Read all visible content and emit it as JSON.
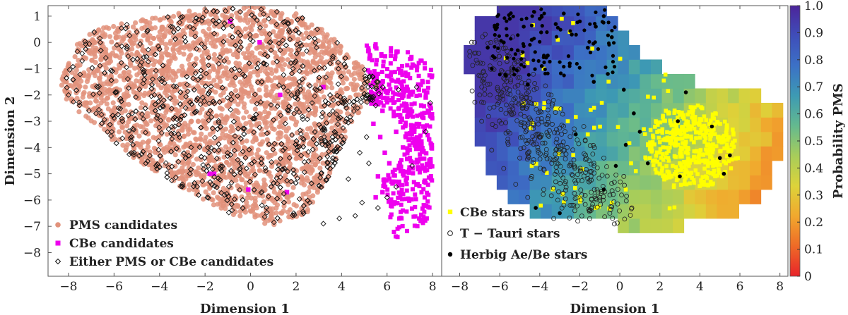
{
  "chart_data": [
    {
      "type": "scatter",
      "panel": "left",
      "xlabel": "Dimension 1",
      "ylabel": "Dimension 2",
      "xlim": [
        -8.9,
        8.4
      ],
      "ylim": [
        -8.9,
        1.4
      ],
      "xticks": [
        "−8",
        "−6",
        "−4",
        "−2",
        "0",
        "2",
        "4",
        "6",
        "8"
      ],
      "yticks": [
        "1",
        "0",
        "−1",
        "−2",
        "−3",
        "−4",
        "−5",
        "−6",
        "−7",
        "−8"
      ],
      "legend_position": "bottom-left",
      "series": [
        {
          "name": "PMS candidates",
          "marker": "filled-circle",
          "color": "#e2927b",
          "region_outline": [
            [
              -8.3,
              -1.3
            ],
            [
              -8.0,
              -0.6
            ],
            [
              -7.5,
              0.1
            ],
            [
              -6.5,
              0.6
            ],
            [
              -4.5,
              0.9
            ],
            [
              -2.0,
              1.3
            ],
            [
              0.0,
              1.4
            ],
            [
              2.0,
              1.1
            ],
            [
              3.5,
              0.3
            ],
            [
              5.0,
              -1.0
            ],
            [
              6.0,
              -1.7
            ],
            [
              4.5,
              -3.0
            ],
            [
              3.5,
              -5.0
            ],
            [
              2.5,
              -6.5
            ],
            [
              1.0,
              -7.0
            ],
            [
              -1.0,
              -6.5
            ],
            [
              -3.5,
              -5.3
            ],
            [
              -5.5,
              -4.2
            ],
            [
              -7.0,
              -3.0
            ],
            [
              -7.8,
              -2.6
            ],
            [
              -8.3,
              -1.9
            ]
          ],
          "points": [
            [
              -8.1,
              -1.5
            ],
            [
              -7.6,
              -0.9
            ],
            [
              -6.8,
              -0.3
            ],
            [
              -5.9,
              0.2
            ],
            [
              -4.8,
              -0.8
            ],
            [
              -3.9,
              0.5
            ],
            [
              -3.1,
              -1.6
            ],
            [
              -2.2,
              0.9
            ],
            [
              -1.5,
              -2.8
            ],
            [
              -0.6,
              0.4
            ],
            [
              0.3,
              -1.1
            ],
            [
              1.2,
              0.6
            ],
            [
              2.1,
              -0.3
            ],
            [
              3.0,
              -1.4
            ],
            [
              4.0,
              -2.2
            ],
            [
              -5.2,
              -2.9
            ],
            [
              -3.5,
              -3.8
            ],
            [
              -1.8,
              -4.5
            ],
            [
              0.0,
              -5.2
            ],
            [
              1.6,
              -5.9
            ],
            [
              2.5,
              -4.3
            ],
            [
              -4.4,
              -1.9
            ],
            [
              -2.6,
              -3.0
            ],
            [
              -0.9,
              -3.6
            ],
            [
              0.8,
              -2.7
            ],
            [
              -6.2,
              -1.8
            ],
            [
              -7.2,
              -2.3
            ],
            [
              3.3,
              -3.0
            ],
            [
              -1.2,
              -6.0
            ],
            [
              0.9,
              -6.6
            ]
          ]
        },
        {
          "name": "CBe candidates",
          "marker": "filled-square",
          "color": "#ee00ee",
          "points": [
            [
              5.4,
              -3.1
            ],
            [
              5.8,
              -2.6
            ],
            [
              6.2,
              -2.2
            ],
            [
              6.6,
              -2.0
            ],
            [
              7.0,
              -1.9
            ],
            [
              7.4,
              -1.8
            ],
            [
              7.7,
              -2.1
            ],
            [
              7.8,
              -2.6
            ],
            [
              7.6,
              -3.2
            ],
            [
              7.4,
              -3.8
            ],
            [
              7.0,
              -4.4
            ],
            [
              6.6,
              -4.9
            ],
            [
              6.2,
              -5.3
            ],
            [
              5.8,
              -5.7
            ],
            [
              5.5,
              -5.9
            ],
            [
              5.9,
              -4.2
            ],
            [
              6.4,
              -3.4
            ],
            [
              6.9,
              -2.8
            ],
            [
              7.2,
              -3.3
            ],
            [
              6.7,
              -4.0
            ],
            [
              6.1,
              -4.6
            ],
            [
              5.6,
              -5.1
            ],
            [
              7.5,
              -2.4
            ],
            [
              6.3,
              -2.8
            ],
            [
              5.7,
              -3.6
            ],
            [
              -0.9,
              0.8
            ],
            [
              0.4,
              0.0
            ],
            [
              1.3,
              -2.0
            ],
            [
              3.2,
              -1.7
            ],
            [
              -1.6,
              -5.0
            ],
            [
              -1.8,
              -5.0
            ],
            [
              -0.1,
              -5.6
            ],
            [
              1.6,
              -5.7
            ]
          ]
        },
        {
          "name": "Either PMS or CBe candidates",
          "marker": "open-diamond",
          "color": "#111111",
          "points": [
            [
              -8.0,
              -2.0
            ],
            [
              -7.4,
              -0.7
            ],
            [
              -6.6,
              0.0
            ],
            [
              -5.8,
              -2.5
            ],
            [
              -5.0,
              0.4
            ],
            [
              -4.3,
              -1.4
            ],
            [
              -3.6,
              -3.3
            ],
            [
              -2.9,
              0.2
            ],
            [
              -2.1,
              -2.1
            ],
            [
              -1.4,
              -4.1
            ],
            [
              -0.7,
              -1.0
            ],
            [
              0.1,
              -2.9
            ],
            [
              0.8,
              0.9
            ],
            [
              1.5,
              -4.8
            ],
            [
              2.2,
              -1.8
            ],
            [
              2.9,
              -0.2
            ],
            [
              3.6,
              -3.6
            ],
            [
              4.3,
              -5.2
            ],
            [
              4.9,
              -6.1
            ],
            [
              5.2,
              -4.6
            ],
            [
              5.6,
              -6.3
            ],
            [
              4.6,
              -6.6
            ],
            [
              3.9,
              -6.7
            ],
            [
              3.2,
              -6.9
            ],
            [
              6.0,
              -5.9
            ],
            [
              6.4,
              -5.5
            ],
            [
              7.1,
              -4.7
            ],
            [
              7.7,
              -3.4
            ],
            [
              7.9,
              -2.3
            ],
            [
              7.3,
              -1.7
            ],
            [
              6.5,
              -1.8
            ],
            [
              5.5,
              -2.4
            ],
            [
              5.1,
              -3.6
            ],
            [
              4.8,
              -4.2
            ],
            [
              -3.0,
              -5.4
            ],
            [
              -4.6,
              -4.6
            ],
            [
              -6.1,
              -3.4
            ],
            [
              -7.1,
              -2.6
            ],
            [
              -1.9,
              -5.9
            ],
            [
              0.5,
              -6.2
            ],
            [
              1.9,
              -6.5
            ],
            [
              2.6,
              -6.1
            ]
          ]
        }
      ]
    },
    {
      "type": "heatmap",
      "panel": "right",
      "xlabel": "Dimension 1",
      "xlim": [
        -8.9,
        8.4
      ],
      "ylim": [
        -8.9,
        1.4
      ],
      "xticks": [
        "−8",
        "−6",
        "−4",
        "−2",
        "0",
        "2",
        "4",
        "6",
        "8"
      ],
      "legend_position": "bottom-left",
      "colorbar": {
        "label": "Probability PMS",
        "range": [
          0,
          1
        ],
        "ticks": [
          "0",
          "0.1",
          "0.2",
          "0.3",
          "0.4",
          "0.5",
          "0.6",
          "0.7",
          "0.8",
          "0.9",
          "1.0"
        ],
        "colormap": [
          "#e8242a",
          "#ee6a27",
          "#f1a82e",
          "#ddd33a",
          "#a8cd5a",
          "#64b98f",
          "#3d9ab3",
          "#3c71c6",
          "#3f4eb9",
          "#4c259a"
        ]
      },
      "grid_step": 0.55,
      "probability_model": "decreasing toward lower-right (CBe region), high in upper-left (PMS region)",
      "series": [
        {
          "name": "CBe stars",
          "marker": "filled-square",
          "color": "#ffff00",
          "points": [
            [
              1.8,
              -3.0
            ],
            [
              2.3,
              -2.6
            ],
            [
              2.8,
              -3.4
            ],
            [
              3.2,
              -2.9
            ],
            [
              3.7,
              -3.8
            ],
            [
              4.1,
              -3.2
            ],
            [
              4.5,
              -4.1
            ],
            [
              4.9,
              -3.6
            ],
            [
              5.3,
              -4.6
            ],
            [
              5.6,
              -3.9
            ],
            [
              3.0,
              -4.6
            ],
            [
              2.5,
              -4.0
            ],
            [
              3.5,
              -5.0
            ],
            [
              4.2,
              -5.3
            ],
            [
              2.0,
              -3.8
            ],
            [
              1.5,
              -4.4
            ],
            [
              2.7,
              -5.5
            ],
            [
              3.9,
              -2.4
            ],
            [
              4.7,
              -2.9
            ],
            [
              5.9,
              -4.4
            ],
            [
              1.2,
              -3.3
            ],
            [
              0.8,
              -4.9
            ],
            [
              0.3,
              -5.6
            ],
            [
              -0.4,
              -6.1
            ],
            [
              -1.2,
              -6.3
            ],
            [
              -2.0,
              -5.9
            ],
            [
              1.7,
              -2.1
            ],
            [
              -0.9,
              -2.3
            ],
            [
              -1.6,
              -3.5
            ],
            [
              -2.6,
              -3.0
            ],
            [
              -3.1,
              0.1
            ],
            [
              -2.5,
              0.4
            ],
            [
              -3.8,
              -1.0
            ],
            [
              -4.4,
              -4.7
            ],
            [
              -5.7,
              -0.6
            ],
            [
              -2.9,
              0.9
            ],
            [
              3.4,
              -3.3
            ],
            [
              2.1,
              -4.9
            ],
            [
              4.4,
              -4.7
            ],
            [
              5.1,
              -5.1
            ]
          ]
        },
        {
          "name": "T − Tauri stars",
          "marker": "open-circle",
          "color": "#111111",
          "points": [
            [
              -7.2,
              -0.4
            ],
            [
              -6.8,
              -1.4
            ],
            [
              -6.5,
              -2.5
            ],
            [
              -6.2,
              -3.2
            ],
            [
              -5.9,
              -1.9
            ],
            [
              -5.6,
              -3.8
            ],
            [
              -5.3,
              -2.7
            ],
            [
              -5.0,
              -4.4
            ],
            [
              -4.7,
              -3.4
            ],
            [
              -4.4,
              -5.1
            ],
            [
              -4.1,
              -4.0
            ],
            [
              -3.8,
              -5.6
            ],
            [
              -3.4,
              -4.6
            ],
            [
              -3.1,
              -6.0
            ],
            [
              -2.7,
              -5.3
            ],
            [
              -2.3,
              -6.2
            ],
            [
              -1.9,
              -5.8
            ],
            [
              -1.5,
              -6.4
            ],
            [
              -1.0,
              -6.0
            ],
            [
              -0.5,
              -6.5
            ],
            [
              -6.9,
              -3.0
            ],
            [
              -6.4,
              -4.1
            ],
            [
              -5.8,
              -4.8
            ],
            [
              -5.2,
              -5.4
            ],
            [
              -4.6,
              -5.9
            ],
            [
              -6.0,
              -0.8
            ],
            [
              -5.4,
              -1.2
            ],
            [
              -4.9,
              -2.1
            ],
            [
              -3.6,
              -2.9
            ],
            [
              -2.8,
              -4.1
            ],
            [
              -1.8,
              -3.2
            ],
            [
              -0.8,
              -4.4
            ],
            [
              0.2,
              -5.1
            ],
            [
              0.6,
              -6.3
            ],
            [
              -7.0,
              -2.0
            ],
            [
              -3.3,
              -6.7
            ],
            [
              -2.1,
              -6.8
            ]
          ]
        },
        {
          "name": "Herbig Ae/Be stars",
          "marker": "filled-circle",
          "color": "#000000",
          "points": [
            [
              -6.2,
              0.5
            ],
            [
              -5.8,
              0.0
            ],
            [
              -5.5,
              0.9
            ],
            [
              -5.1,
              -0.3
            ],
            [
              -4.8,
              0.6
            ],
            [
              -4.4,
              0.1
            ],
            [
              -4.0,
              0.9
            ],
            [
              -3.6,
              -0.5
            ],
            [
              -3.2,
              0.7
            ],
            [
              -2.8,
              1.1
            ],
            [
              -2.4,
              0.3
            ],
            [
              -2.0,
              0.8
            ],
            [
              -1.6,
              -0.2
            ],
            [
              -1.2,
              0.6
            ],
            [
              -0.8,
              1.0
            ],
            [
              -0.4,
              0.2
            ],
            [
              -6.6,
              -0.2
            ],
            [
              -5.3,
              -1.0
            ],
            [
              -4.6,
              -1.6
            ],
            [
              -3.9,
              -0.9
            ],
            [
              -2.5,
              -0.8
            ],
            [
              -1.3,
              -1.5
            ],
            [
              -0.6,
              -1.2
            ],
            [
              0.2,
              -1.8
            ],
            [
              0.7,
              -2.7
            ],
            [
              1.0,
              -3.4
            ],
            [
              0.3,
              -3.9
            ],
            [
              1.4,
              -4.6
            ],
            [
              2.9,
              -3.0
            ],
            [
              3.0,
              -5.1
            ],
            [
              4.6,
              -3.2
            ],
            [
              5.0,
              -4.4
            ],
            [
              5.2,
              -5.0
            ],
            [
              5.5,
              -4.3
            ],
            [
              3.3,
              -1.9
            ],
            [
              -0.2,
              -4.7
            ],
            [
              -0.8,
              -5.6
            ],
            [
              -3.0,
              -6.5
            ],
            [
              -4.2,
              -6.3
            ],
            [
              -2.2,
              -3.5
            ]
          ]
        }
      ]
    }
  ]
}
